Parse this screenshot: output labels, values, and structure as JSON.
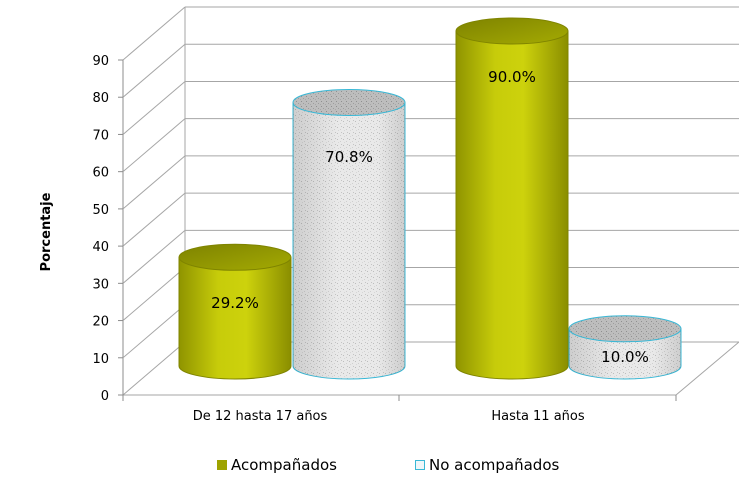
{
  "chart_data": {
    "type": "bar",
    "style": "3d-cylinder",
    "categories": [
      "De 12 hasta 17 años",
      "Hasta 11 años"
    ],
    "series": [
      {
        "name": "Acompañados",
        "values": [
          29.2,
          90.0
        ],
        "labels": [
          "29.2%",
          "90.0%"
        ],
        "color": "#b8bf05"
      },
      {
        "name": "No acompañados",
        "values": [
          70.8,
          10.0
        ],
        "labels": [
          "70.8%",
          "10.0%"
        ],
        "color": "#e8e8e8",
        "stroke": "#39b8d6"
      }
    ],
    "xlabel": "",
    "ylabel": "Porcentaje",
    "ylim": [
      0,
      90
    ],
    "yticks": [
      0,
      10,
      20,
      30,
      40,
      50,
      60,
      70,
      80,
      90
    ],
    "grid": true,
    "legend_position": "bottom"
  }
}
